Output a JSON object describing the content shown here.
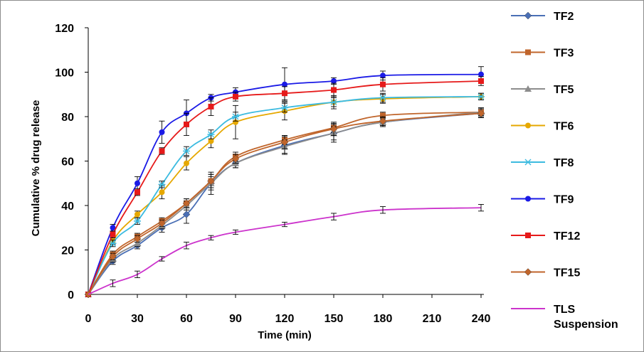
{
  "chart_data": {
    "type": "line",
    "title": "",
    "xlabel": "Time (min)",
    "ylabel": "Cumulative % drug release",
    "xlim": [
      0,
      240
    ],
    "ylim": [
      0,
      120
    ],
    "xticks": [
      0,
      30,
      60,
      90,
      120,
      150,
      180,
      210,
      240
    ],
    "yticks": [
      0,
      20,
      40,
      60,
      80,
      100,
      120
    ],
    "x": [
      0,
      15,
      30,
      45,
      60,
      75,
      90,
      120,
      150,
      180,
      240
    ],
    "legend_position": "right",
    "series": [
      {
        "name": "TF2",
        "color": "#4a6fb5",
        "marker": "diamond",
        "values": [
          0,
          15,
          22,
          30,
          36,
          50,
          59,
          67,
          72.5,
          77.5,
          81.5
        ],
        "errors": [
          0,
          1.5,
          1.5,
          2,
          4,
          5,
          2,
          4,
          4,
          2,
          2
        ]
      },
      {
        "name": "TF3",
        "color": "#c0652b",
        "marker": "square",
        "values": [
          0,
          18,
          26,
          33,
          41,
          51,
          62,
          69.5,
          75,
          80.5,
          82
        ],
        "errors": [
          0,
          1.5,
          1.5,
          1.5,
          2,
          3,
          2,
          2,
          2,
          1.5,
          1.5
        ]
      },
      {
        "name": "TF5",
        "color": "#8c8c8c",
        "marker": "triangle",
        "values": [
          0,
          16,
          23,
          31,
          40,
          50,
          59,
          66.5,
          72.5,
          77.5,
          82
        ],
        "errors": [
          0,
          1.5,
          1.5,
          1.5,
          2,
          3,
          2,
          3,
          3,
          2,
          2
        ]
      },
      {
        "name": "TF6",
        "color": "#e6a800",
        "marker": "circle",
        "values": [
          0,
          24,
          36,
          46,
          59,
          69,
          77.5,
          82.5,
          86.5,
          88,
          89
        ],
        "errors": [
          0,
          1.5,
          1.5,
          3,
          3,
          3,
          7.5,
          4,
          3,
          2,
          1.5
        ]
      },
      {
        "name": "TF8",
        "color": "#3cbbe0",
        "marker": "star",
        "values": [
          0,
          23,
          33,
          49.5,
          64.5,
          72,
          80,
          84,
          86.5,
          88.5,
          89
        ],
        "errors": [
          0,
          1.5,
          1.5,
          1.5,
          2,
          2,
          2,
          2,
          2,
          2,
          1.5
        ]
      },
      {
        "name": "TF9",
        "color": "#1a1ae6",
        "marker": "circle",
        "values": [
          0,
          30,
          50,
          73,
          81.5,
          88.5,
          91,
          94.5,
          96,
          98.5,
          99
        ],
        "errors": [
          0,
          1.5,
          3,
          5,
          6,
          1.5,
          2,
          7.5,
          1.5,
          2,
          3.5
        ]
      },
      {
        "name": "TF12",
        "color": "#e61a1a",
        "marker": "square",
        "values": [
          0,
          27,
          46,
          64.5,
          76.5,
          84.5,
          89,
          90.5,
          92,
          94.5,
          96
        ],
        "errors": [
          0,
          1.5,
          1.5,
          1.5,
          5,
          4,
          2,
          3,
          3,
          3,
          2
        ]
      },
      {
        "name": "TF15",
        "color": "#c0652b",
        "marker": "diamond",
        "values": [
          0,
          17,
          25,
          32,
          41,
          51,
          61,
          68.5,
          74.5,
          78,
          81.5
        ],
        "errors": [
          0,
          1.5,
          1.5,
          1.5,
          2,
          3,
          2,
          3,
          3,
          2,
          2
        ]
      },
      {
        "name": "TLS Suspension",
        "legend_lines": [
          "TLS",
          "Suspension"
        ],
        "color": "#cc33cc",
        "marker": "none",
        "values": [
          0,
          5,
          9,
          16,
          22,
          25.5,
          28,
          31.5,
          35,
          38,
          39
        ],
        "errors": [
          0,
          1.5,
          1.5,
          1,
          1.5,
          1,
          1,
          1,
          1.5,
          1.5,
          1.5
        ]
      }
    ]
  }
}
